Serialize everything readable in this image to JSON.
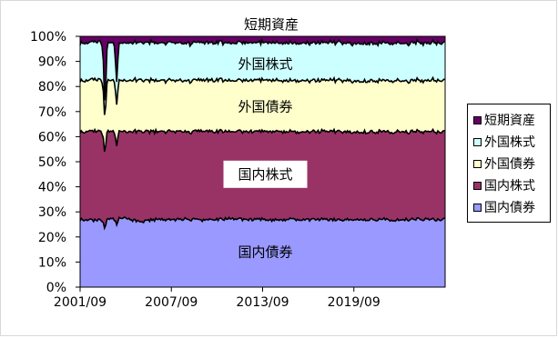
{
  "chart_data": {
    "type": "area",
    "stacked": true,
    "normalized": true,
    "title": "短期資産",
    "xlabel": "",
    "ylabel": "",
    "x_range": [
      "2001/09",
      "2025/09"
    ],
    "x_ticks": [
      "2001/09",
      "2007/09",
      "2013/09",
      "2019/09"
    ],
    "ylim": [
      0,
      100
    ],
    "y_ticks": [
      "0%",
      "10%",
      "20%",
      "30%",
      "40%",
      "50%",
      "60%",
      "70%",
      "80%",
      "90%",
      "100%"
    ],
    "series": [
      {
        "name": "国内債券",
        "color": "#9999ff",
        "values": [
          27,
          26.5,
          27,
          27.5,
          26,
          27,
          26.8,
          27.2,
          26.5,
          27,
          27.3,
          26.8,
          27,
          26.6,
          27.1,
          26.9,
          27,
          26.7,
          27.2,
          26.9,
          27,
          26.8,
          27.1,
          26.9,
          27
        ]
      },
      {
        "name": "国内株式",
        "color": "#993366",
        "values": [
          35,
          35.5,
          35,
          34.5,
          36,
          35,
          35.2,
          34.8,
          35.5,
          35,
          34.7,
          35.2,
          35,
          35.4,
          34.9,
          35.1,
          35,
          35.3,
          34.8,
          35.1,
          35,
          35.2,
          34.9,
          35.1,
          35
        ]
      },
      {
        "name": "外国債券",
        "color": "#ffffcc",
        "values": [
          20.5,
          20.5,
          20.3,
          20.4,
          20.4,
          20.4,
          20.4,
          20.3,
          20.4,
          20.4,
          20.4,
          20.4,
          20.4,
          20.4,
          20.4,
          20.4,
          20.4,
          20.4,
          20.4,
          20.4,
          20.4,
          20.4,
          20.4,
          20.4,
          20.4
        ]
      },
      {
        "name": "外国株式",
        "color": "#ccffff",
        "values": [
          15,
          15,
          15,
          15,
          15,
          15,
          15,
          15,
          15,
          15,
          15,
          15,
          15,
          15,
          15,
          15,
          15,
          15,
          15,
          15,
          15,
          15,
          15,
          15,
          15
        ]
      },
      {
        "name": "短期資産",
        "color": "#660066",
        "values": [
          2.5,
          2.5,
          2.7,
          2.6,
          2.6,
          2.6,
          2.6,
          2.7,
          2.6,
          2.6,
          2.6,
          2.6,
          2.6,
          2.6,
          2.6,
          2.6,
          2.6,
          2.6,
          2.6,
          2.6,
          2.6,
          2.6,
          2.6,
          2.6,
          2.6
        ]
      }
    ],
    "band_labels": [
      {
        "series": "外国株式",
        "text": "外国株式",
        "y": 89
      },
      {
        "series": "外国債券",
        "text": "外国債券",
        "y": 72
      },
      {
        "series": "国内株式",
        "text": "国内株式",
        "y": 45
      },
      {
        "series": "国内債券",
        "text": "国内債券",
        "y": 14
      }
    ],
    "legend": {
      "position": "right",
      "items": [
        {
          "label": "短期資産",
          "color": "#660066"
        },
        {
          "label": "外国株式",
          "color": "#ccffff"
        },
        {
          "label": "外国債券",
          "color": "#ffffcc"
        },
        {
          "label": "国内株式",
          "color": "#993366"
        },
        {
          "label": "国内債券",
          "color": "#9999ff"
        }
      ]
    }
  }
}
